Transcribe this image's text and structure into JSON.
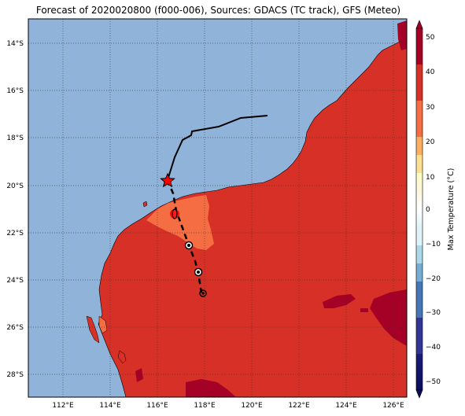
{
  "title": "Forecast of 2020020800 (f000-006), Sources: GDACS (TC track), GFS (Meteo)",
  "lat_labels": [
    "14°S",
    "16°S",
    "18°S",
    "20°S",
    "22°S",
    "24°S",
    "26°S",
    "28°S"
  ],
  "lon_labels": [
    "112°E",
    "114°E",
    "116°E",
    "118°E",
    "120°E",
    "122°E",
    "124°E",
    "126°E"
  ],
  "colorbar": {
    "label": "Max Temperature (°C)",
    "ticks": [
      "50",
      "40",
      "30",
      "20",
      "10",
      "0",
      "−10",
      "−20",
      "−30",
      "−40",
      "−50"
    ]
  },
  "colors": {
    "ocean": "#8fb3d9",
    "land_30_40": "#d73027",
    "land_20_30": "#f46d43",
    "land_40_50": "#a50026"
  },
  "track": {
    "past_style": "solid",
    "forecast_style": "dashed",
    "current_marker": "red-star-icon"
  }
}
